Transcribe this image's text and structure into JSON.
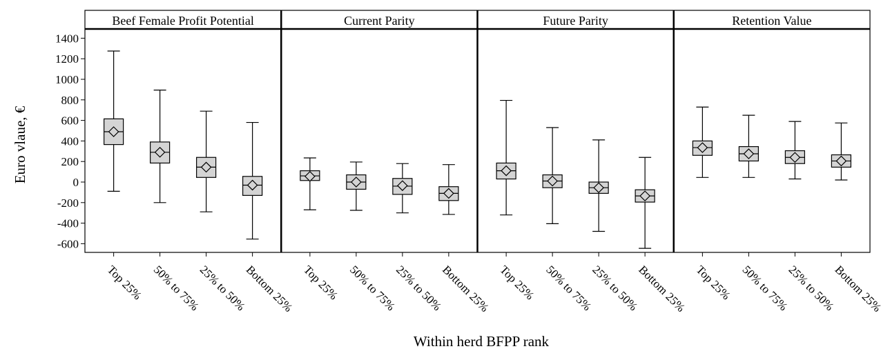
{
  "chart_data": {
    "type": "boxplot",
    "xlabel": "Within herd BFPP rank",
    "ylabel": "Euro vlaue, €",
    "ylim": [
      -700,
      1500
    ],
    "yticks": [
      -600,
      -400,
      -200,
      0,
      200,
      400,
      600,
      800,
      1000,
      1200,
      1400
    ],
    "categories": [
      "Top 25%",
      "50% to 75%",
      "25% to 50%",
      "Bottom 25%"
    ],
    "colors": {
      "box_fill": "#d4d4d4",
      "stroke": "#000000"
    },
    "panels": [
      {
        "title": "Beef Female Profit Potential",
        "boxes": [
          {
            "min": -90,
            "q1": 365,
            "median": 490,
            "mean": 490,
            "q3": 615,
            "max": 1275
          },
          {
            "min": -200,
            "q1": 185,
            "median": 290,
            "mean": 290,
            "q3": 390,
            "max": 895
          },
          {
            "min": -290,
            "q1": 45,
            "median": 145,
            "mean": 145,
            "q3": 240,
            "max": 690
          },
          {
            "min": -555,
            "q1": -130,
            "median": -30,
            "mean": -30,
            "q3": 55,
            "max": 580
          }
        ]
      },
      {
        "title": "Current Parity",
        "boxes": [
          {
            "min": -270,
            "q1": 15,
            "median": 60,
            "mean": 55,
            "q3": 110,
            "max": 235
          },
          {
            "min": -275,
            "q1": -70,
            "median": 0,
            "mean": 0,
            "q3": 70,
            "max": 195
          },
          {
            "min": -300,
            "q1": -120,
            "median": -40,
            "mean": -35,
            "q3": 35,
            "max": 180
          },
          {
            "min": -315,
            "q1": -180,
            "median": -110,
            "mean": -110,
            "q3": -45,
            "max": 170
          }
        ]
      },
      {
        "title": "Future Parity",
        "boxes": [
          {
            "min": -320,
            "q1": 30,
            "median": 110,
            "mean": 110,
            "q3": 185,
            "max": 795
          },
          {
            "min": -405,
            "q1": -55,
            "median": 10,
            "mean": 10,
            "q3": 70,
            "max": 530
          },
          {
            "min": -480,
            "q1": -110,
            "median": -55,
            "mean": -55,
            "q3": 0,
            "max": 410
          },
          {
            "min": -645,
            "q1": -195,
            "median": -135,
            "mean": -135,
            "q3": -75,
            "max": 240
          }
        ]
      },
      {
        "title": "Retention Value",
        "boxes": [
          {
            "min": 45,
            "q1": 260,
            "median": 335,
            "mean": 335,
            "q3": 400,
            "max": 730
          },
          {
            "min": 45,
            "q1": 205,
            "median": 275,
            "mean": 275,
            "q3": 345,
            "max": 650
          },
          {
            "min": 30,
            "q1": 180,
            "median": 240,
            "mean": 240,
            "q3": 305,
            "max": 590
          },
          {
            "min": 20,
            "q1": 145,
            "median": 205,
            "mean": 205,
            "q3": 265,
            "max": 575
          }
        ]
      }
    ]
  }
}
